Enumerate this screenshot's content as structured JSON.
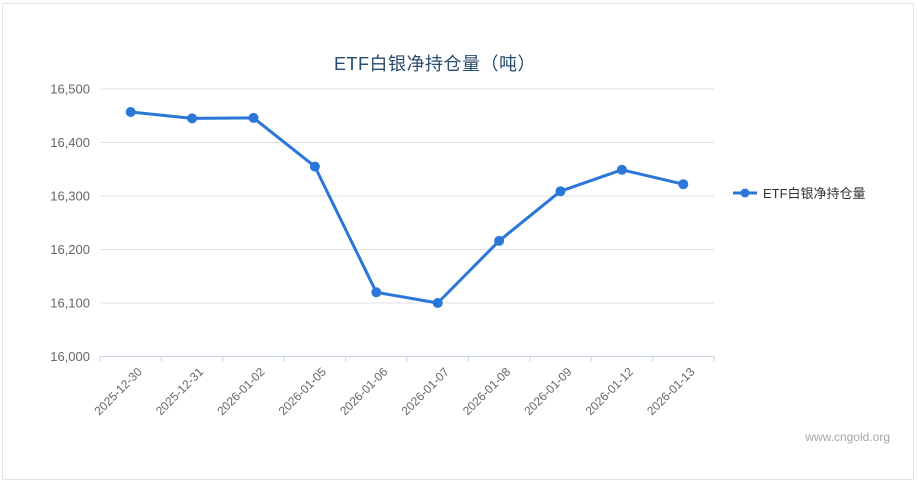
{
  "page": {
    "watermark": "www.cngold.org"
  },
  "colors": {
    "background": "#ffffff",
    "panel_border": "#e4e4e4",
    "title": "#274b6d",
    "axis_label": "#666666",
    "grid": "#e0e0e0",
    "axis_line": "#c9d6e8",
    "legend_text": "#333333",
    "watermark": "#a6a6a6",
    "series_blue": "#2b76d9"
  },
  "chart_data": {
    "type": "line",
    "title": "ETF白银净持仓量（吨）",
    "categories": [
      "2025-12-30",
      "2025-12-31",
      "2026-01-02",
      "2026-01-05",
      "2026-01-06",
      "2026-01-07",
      "2026-01-08",
      "2026-01-09",
      "2026-01-12",
      "2026-01-13"
    ],
    "series": [
      {
        "name": "ETF白银净持仓量",
        "color": "#2b76d9",
        "values": [
          16457,
          16445,
          16446,
          16355,
          16120,
          16100,
          16216,
          16309,
          16349,
          16322
        ]
      }
    ],
    "xlabel": "",
    "ylabel": "",
    "ylim": [
      16000,
      16500
    ],
    "ytick_step": 100,
    "grid": true,
    "legend_position": "right",
    "x_label_rotation": -45,
    "marker": "circle"
  }
}
